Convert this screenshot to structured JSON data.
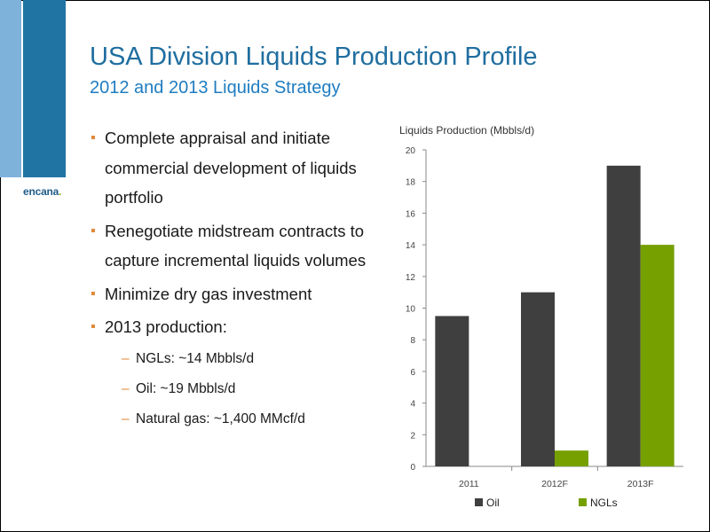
{
  "slide": {
    "title": "USA Division Liquids Production Profile",
    "subtitle": "2012 and 2013 Liquids Strategy",
    "logo": "encana",
    "logo_dot": ".",
    "colors": {
      "accent": "#1f74a4",
      "light_bar": "#7fb2da",
      "bullet": "#e08a3a"
    }
  },
  "bullets": [
    "Complete appraisal and initiate commercial development of liquids portfolio",
    "Renegotiate midstream contracts to capture incremental liquids volumes",
    "Minimize dry gas investment",
    "2013 production:"
  ],
  "sub_bullets": [
    "NGLs: ~14 Mbbls/d",
    "Oil: ~19 Mbbls/d",
    "Natural gas: ~1,400 MMcf/d"
  ],
  "chart_data": {
    "type": "bar",
    "title": "Liquids Production (Mbbls/d)",
    "categories": [
      "2011",
      "2012F",
      "2013F"
    ],
    "series": [
      {
        "name": "Oil",
        "values": [
          9.5,
          11,
          19
        ],
        "color": "#3f3f3f"
      },
      {
        "name": "NGLs",
        "values": [
          0,
          1,
          14
        ],
        "color": "#76a000"
      }
    ],
    "ylim": [
      0,
      20
    ],
    "yticks": [
      "0",
      "2",
      "4",
      "6",
      "8",
      "10",
      "12",
      "14",
      "16",
      "18",
      "20"
    ],
    "grid": false,
    "legend": "bottom"
  }
}
